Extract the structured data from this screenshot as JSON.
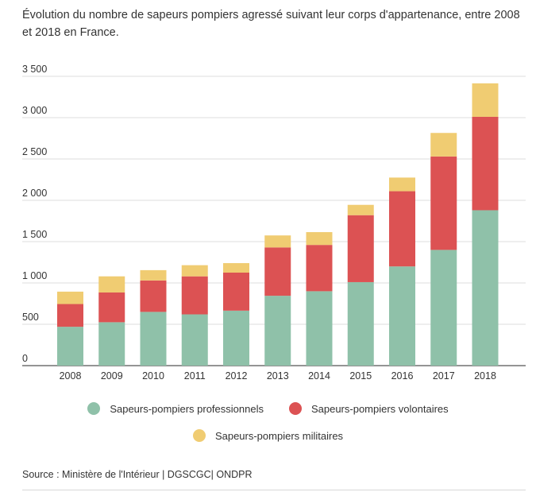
{
  "chart_data": {
    "type": "bar",
    "stacked": true,
    "title": "Évolution du nombre de sapeurs pompiers agressé suivant leur corps d'appartenance, entre 2008 et 2018 en France.",
    "xlabel": "",
    "ylabel": "",
    "ylim": [
      0,
      3500
    ],
    "yticks": [
      0,
      500,
      1000,
      1500,
      2000,
      2500,
      3000,
      3500
    ],
    "ytick_labels": [
      "0",
      "500",
      "1 000",
      "1 500",
      "2 000",
      "2 500",
      "3 000",
      "3 500"
    ],
    "categories": [
      "2008",
      "2009",
      "2010",
      "2011",
      "2012",
      "2013",
      "2014",
      "2015",
      "2016",
      "2017",
      "2018"
    ],
    "series": [
      {
        "name": "Sapeurs-pompiers professionnels",
        "color": "#8fc1a9",
        "values": [
          470,
          525,
          650,
          620,
          665,
          845,
          900,
          1010,
          1200,
          1400,
          1880
        ]
      },
      {
        "name": "Sapeurs-pompiers volontaires",
        "color": "#dc5253",
        "values": [
          275,
          360,
          380,
          460,
          460,
          585,
          560,
          810,
          910,
          1130,
          1130
        ]
      },
      {
        "name": "Sapeurs-pompiers militaires",
        "color": "#f0cc72",
        "values": [
          150,
          195,
          125,
          135,
          115,
          145,
          155,
          125,
          165,
          285,
          405
        ]
      }
    ],
    "legend_position": "bottom",
    "grid": true
  },
  "source": "Source : Ministère de l'Intérieur | DGSCGC| ONDPR"
}
